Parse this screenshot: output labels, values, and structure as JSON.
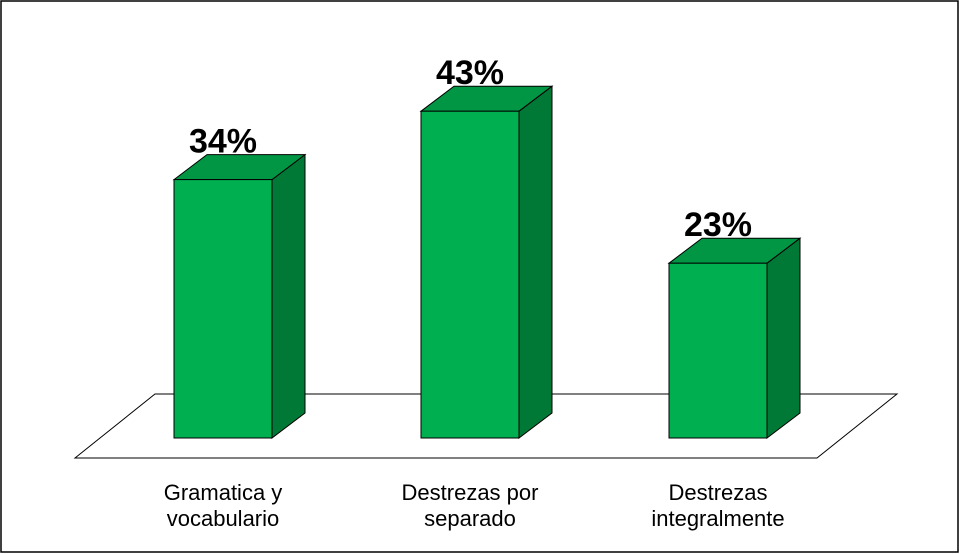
{
  "chart_data": {
    "type": "bar3d",
    "categories": [
      "Gramatica y vocabulario",
      "Destrezas por separado",
      "Destrezas integralmente"
    ],
    "values": [
      34,
      43,
      23
    ],
    "value_labels": [
      "34%",
      "43%",
      "23%"
    ],
    "color": "#00b050"
  }
}
